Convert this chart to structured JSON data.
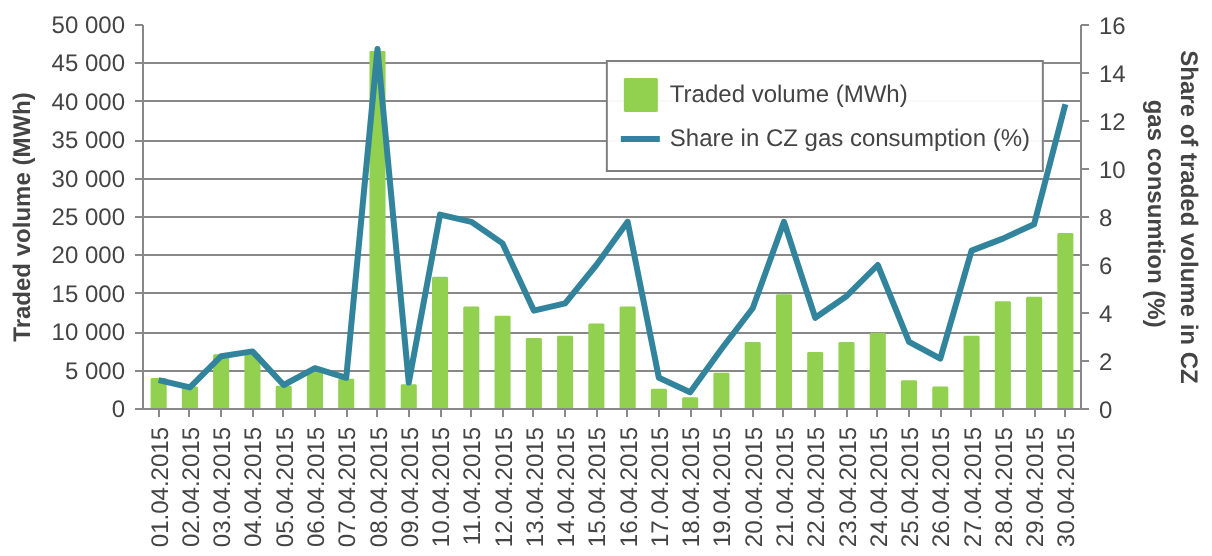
{
  "chart_data": {
    "type": "bar",
    "categories": [
      "01.04.2015",
      "02.04.2015",
      "03.04.2015",
      "04.04.2015",
      "05.04.2015",
      "06.04.2015",
      "07.04.2015",
      "08.04.2015",
      "09.04.2015",
      "10.04.2015",
      "11.04.2015",
      "12.04.2015",
      "13.04.2015",
      "14.04.2015",
      "15.04.2015",
      "16.04.2015",
      "17.04.2015",
      "18.04.2015",
      "19.04.2015",
      "20.04.2015",
      "21.04.2015",
      "22.04.2015",
      "23.04.2015",
      "24.04.2015",
      "25.04.2015",
      "26.04.2015",
      "27.04.2015",
      "28.04.2015",
      "29.04.2015",
      "30.04.2015"
    ],
    "series": [
      {
        "name": "Traded volume (MWh)",
        "color": "#92d050",
        "values": [
          3900,
          2800,
          7000,
          7000,
          2900,
          4700,
          3800,
          46500,
          3100,
          17100,
          13200,
          12000,
          9100,
          9400,
          11000,
          13200,
          2500,
          1400,
          4600,
          8600,
          14800,
          7300,
          8600,
          9800,
          3600,
          2800,
          9400,
          13900,
          14500,
          22800
        ]
      },
      {
        "name": "Share in CZ gas consumption (%)",
        "type": "line",
        "axis": "y2",
        "color": "#31849b",
        "values": [
          1.2,
          0.9,
          2.2,
          2.4,
          1.0,
          1.7,
          1.3,
          15.0,
          1.1,
          8.1,
          7.8,
          6.9,
          4.1,
          4.4,
          6.0,
          7.8,
          1.3,
          0.7,
          2.5,
          4.2,
          7.8,
          3.8,
          4.7,
          6.0,
          2.8,
          2.1,
          6.6,
          7.1,
          7.7,
          12.7
        ]
      }
    ],
    "ylabel": "Traded volume (MWh)",
    "y2label": "Share of traded volume in CZ gas consumtion  (%)",
    "ylim": [
      0,
      50000
    ],
    "yticks": [
      0,
      {
        "value": 5000,
        "label": "5 000"
      },
      {
        "value": 10000,
        "label": "10 000"
      },
      {
        "value": 15000,
        "label": "15 000"
      },
      {
        "value": 20000,
        "label": "20 000"
      },
      {
        "value": 25000,
        "label": "25 000"
      },
      {
        "value": 30000,
        "label": "30 000"
      },
      {
        "value": 35000,
        "label": "35 000"
      },
      {
        "value": 40000,
        "label": "40 000"
      },
      {
        "value": 45000,
        "label": "45 000"
      },
      {
        "value": 50000,
        "label": "50 000"
      }
    ],
    "y2lim": [
      0,
      16
    ],
    "y2ticks": [
      0,
      2,
      4,
      6,
      8,
      10,
      12,
      14,
      16
    ],
    "grid": "y",
    "legend": "top right"
  }
}
